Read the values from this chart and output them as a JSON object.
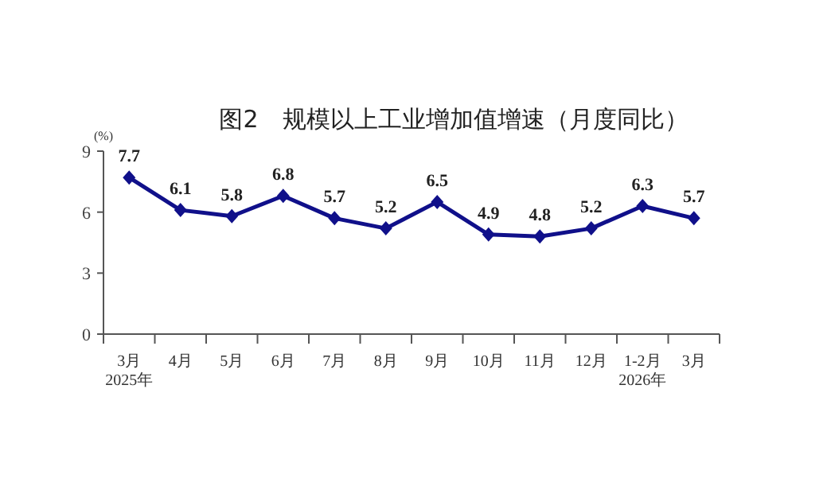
{
  "chart_data": {
    "type": "line",
    "title": "图2　规模以上工业增加值增速（月度同比）",
    "ylabel": "(%)",
    "categories": [
      "3月\n2025年",
      "4月",
      "5月",
      "6月",
      "7月",
      "8月",
      "9月",
      "10月",
      "11月",
      "12月",
      "1-2月\n2026年",
      "3月"
    ],
    "series": [
      {
        "color": "#10108a",
        "values": [
          7.7,
          6.1,
          5.8,
          6.8,
          5.7,
          5.2,
          6.5,
          4.9,
          4.8,
          5.2,
          6.3,
          5.7
        ]
      }
    ],
    "ylim": [
      0,
      9
    ],
    "yticks": [
      0,
      3,
      6,
      9
    ],
    "marker": "diamond",
    "data_labels": true,
    "grid": false
  }
}
